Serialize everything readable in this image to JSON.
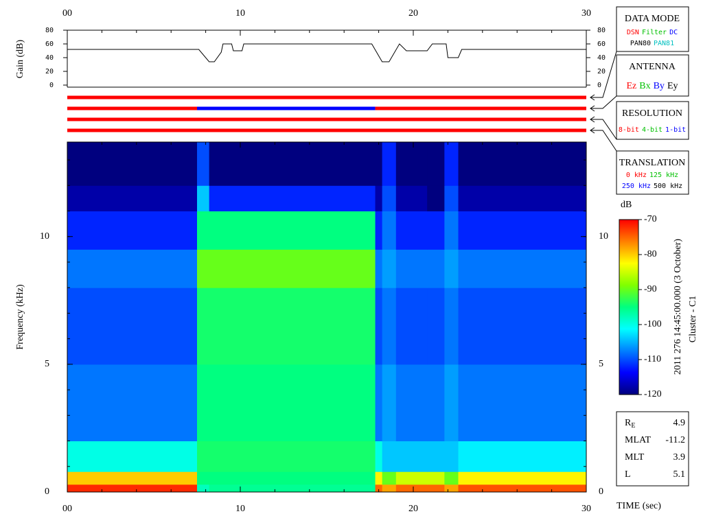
{
  "chart_data": [
    {
      "type": "line",
      "ylabel": "Gain (dB)",
      "color": "#000000",
      "x": [
        0,
        7.6,
        8.2,
        8.5,
        8.9,
        9.0,
        9.5,
        9.6,
        10.1,
        10.2,
        17.6,
        18.2,
        18.6,
        19.2,
        19.6,
        20.8,
        21.1,
        21.9,
        22.0,
        22.6,
        22.8,
        30
      ],
      "values": [
        52,
        52,
        34,
        34,
        48,
        60,
        60,
        50,
        50,
        60,
        60,
        34,
        34,
        60,
        50,
        50,
        60,
        60,
        40,
        40,
        52,
        52
      ],
      "xlim": [
        0,
        30
      ],
      "xticks": [
        {
          "value": 0,
          "label": "00"
        },
        10,
        20,
        30
      ],
      "ylim": [
        0,
        80
      ],
      "yticks": [
        0,
        20,
        40,
        60,
        80
      ]
    },
    {
      "type": "status",
      "xlim": [
        0,
        30
      ],
      "rows": [
        {
          "segments": [
            {
              "start": 0,
              "end": 30,
              "color": "#ff0000"
            }
          ]
        },
        {
          "segments": [
            {
              "start": 0,
              "end": 7.5,
              "color": "#ff0000"
            },
            {
              "start": 7.5,
              "end": 17.8,
              "color": "#0000ff"
            },
            {
              "start": 17.8,
              "end": 30,
              "color": "#ff0000"
            }
          ]
        },
        {
          "segments": [
            {
              "start": 0,
              "end": 30,
              "color": "#ff0000"
            }
          ]
        },
        {
          "segments": [
            {
              "start": 0,
              "end": 30,
              "color": "#ff0000"
            }
          ]
        }
      ]
    },
    {
      "type": "heatmap",
      "xlabel": "TIME (sec)",
      "ylabel": "Frequency (kHz)",
      "zlabel": "dB",
      "x_edges": [
        0,
        7.5,
        8.2,
        17.8,
        18.2,
        19.0,
        20.8,
        21.8,
        22.6,
        30
      ],
      "y_edges": [
        0,
        0.3,
        0.8,
        2,
        5,
        8,
        9.5,
        11,
        12,
        13.7
      ],
      "values": [
        [
          -72,
          -98,
          -96,
          -75,
          -78,
          -75,
          -75,
          -78,
          -74
        ],
        [
          -80,
          -95,
          -95,
          -82,
          -90,
          -85,
          -85,
          -90,
          -82
        ],
        [
          -100,
          -94,
          -94,
          -100,
          -104,
          -104,
          -104,
          -104,
          -102
        ],
        [
          -108,
          -95,
          -95,
          -108,
          -106,
          -108,
          -108,
          -106,
          -108
        ],
        [
          -110,
          -94,
          -94,
          -110,
          -108,
          -110,
          -110,
          -108,
          -110
        ],
        [
          -108,
          -90,
          -90,
          -108,
          -106,
          -108,
          -108,
          -106,
          -108
        ],
        [
          -112,
          -95,
          -95,
          -112,
          -108,
          -112,
          -112,
          -108,
          -112
        ],
        [
          -118,
          -104,
          -112,
          -118,
          -110,
          -118,
          -120,
          -110,
          -118
        ],
        [
          -120,
          -110,
          -120,
          -120,
          -112,
          -120,
          -122,
          -112,
          -120
        ]
      ],
      "colormap": [
        "#00007f",
        "#0000ff",
        "#0080ff",
        "#00ffff",
        "#00ff80",
        "#80ff00",
        "#ffff00",
        "#ff8000",
        "#ff0000"
      ],
      "xlim": [
        0,
        30
      ],
      "xticks": [
        {
          "value": 0,
          "label": "00"
        },
        10,
        20,
        30
      ],
      "ylim": [
        0,
        13.7
      ],
      "yticks": [
        0,
        5,
        10
      ],
      "zlim": [
        -120,
        -70
      ],
      "zticks": [
        -70,
        -80,
        -90,
        -100,
        -110,
        -120
      ]
    }
  ],
  "panels": [
    {
      "title": "DATA MODE",
      "rows": [
        [
          {
            "text": "DSN",
            "color": "#ff0000"
          },
          {
            "text": "Filter",
            "color": "#00c000"
          },
          {
            "text": "DC",
            "color": "#0000ff"
          }
        ],
        [
          {
            "text": "PAN80",
            "color": "#000000"
          },
          {
            "text": "PAN81",
            "color": "#00c0c0"
          }
        ]
      ]
    },
    {
      "title": "ANTENNA",
      "rows": [
        [
          {
            "text": "Ez",
            "color": "#ff0000"
          },
          {
            "text": "Bx",
            "color": "#00c000"
          },
          {
            "text": "By",
            "color": "#0000ff"
          },
          {
            "text": "Ey",
            "color": "#000000"
          }
        ]
      ]
    },
    {
      "title": "RESOLUTION",
      "rows": [
        [
          {
            "text": "8-bit",
            "color": "#ff0000"
          },
          {
            "text": "4-bit",
            "color": "#00c000"
          },
          {
            "text": "1-bit",
            "color": "#0000ff"
          }
        ]
      ]
    },
    {
      "title": "TRANSLATION",
      "rows": [
        [
          {
            "text": "0 kHz",
            "color": "#ff0000"
          },
          {
            "text": "125 kHz",
            "color": "#00c000"
          }
        ],
        [
          {
            "text": "250 kHz",
            "color": "#0000ff"
          },
          {
            "text": "500 kHz",
            "color": "#000000"
          }
        ]
      ]
    }
  ],
  "caption": [
    "2011 276 14:45:00.000 (3 October)",
    "Cluster - C1"
  ],
  "orbit": [
    {
      "label": "R",
      "sub": "E",
      "value": 4.9
    },
    {
      "label": "MLAT",
      "value": -11.2
    },
    {
      "label": "MLT",
      "value": 3.9
    },
    {
      "label": "L",
      "value": 5.1
    }
  ]
}
